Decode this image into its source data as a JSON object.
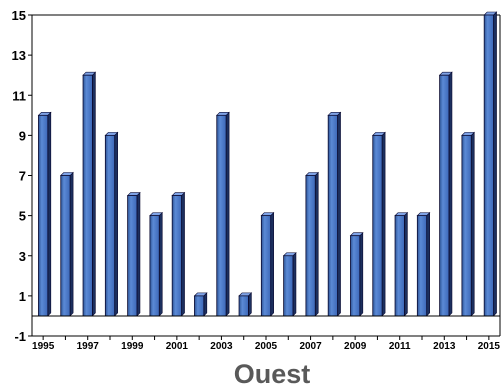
{
  "chart_data": {
    "type": "bar",
    "title": "Ouest",
    "xlabel": "",
    "ylabel": "",
    "categories": [
      "1995",
      "1996",
      "1997",
      "1998",
      "1999",
      "2000",
      "2001",
      "2002",
      "2003",
      "2004",
      "2005",
      "2006",
      "2007",
      "2008",
      "2009",
      "2010",
      "2011",
      "2012",
      "2013",
      "2014",
      "2015"
    ],
    "values": [
      10,
      7,
      12,
      9,
      6,
      5,
      6,
      1,
      10,
      1,
      5,
      3,
      7,
      10,
      4,
      9,
      5,
      5,
      12,
      9,
      15
    ],
    "x_tick_labels": [
      "1995",
      "1997",
      "1999",
      "2001",
      "2003",
      "2005",
      "2007",
      "2009",
      "2011",
      "2013",
      "2015"
    ],
    "y_ticks": [
      "-1",
      "1",
      "3",
      "5",
      "7",
      "9",
      "11",
      "13",
      "15"
    ],
    "ylim": [
      -1,
      15
    ],
    "grid": false,
    "legend": "none",
    "bar_color": "#4472c4",
    "bar_edge_color": "#0a0a30"
  }
}
